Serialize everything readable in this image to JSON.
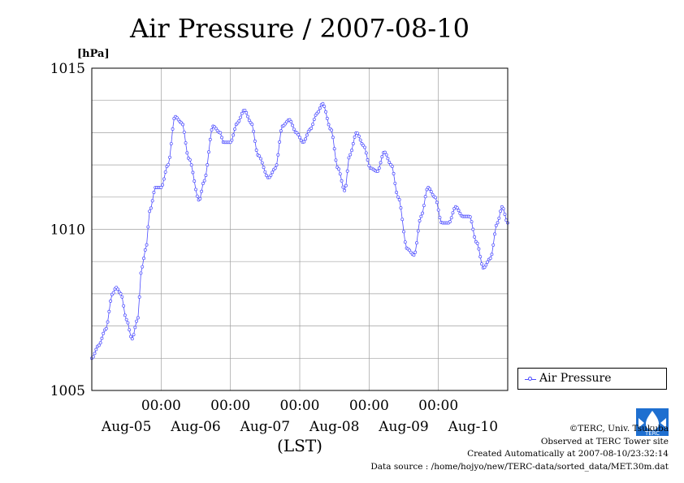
{
  "chart_data": {
    "type": "line",
    "title": "Air Pressure / 2007-08-10",
    "ylabel": "[hPa]",
    "xlabel": "(LST)",
    "ylim": [
      1005,
      1015
    ],
    "yticks": [
      "1005",
      "1010",
      "1015"
    ],
    "x_time_ticks": [
      "00:00",
      "00:00",
      "00:00",
      "00:00",
      "00:00"
    ],
    "x_date_labels": [
      "Aug-05",
      "Aug-06",
      "Aug-07",
      "Aug-08",
      "Aug-09",
      "Aug-10"
    ],
    "x_range_days": [
      0,
      6
    ],
    "grid": true,
    "legend_position": "right",
    "series": [
      {
        "name": "Air Pressure",
        "color": "#4b4bff",
        "interval_hours": 0.5,
        "keypoints": [
          {
            "t": 0.0,
            "y": 1006.0
          },
          {
            "t": 0.1,
            "y": 1006.4
          },
          {
            "t": 0.2,
            "y": 1006.9
          },
          {
            "t": 0.3,
            "y": 1008.0
          },
          {
            "t": 0.35,
            "y": 1008.2
          },
          {
            "t": 0.42,
            "y": 1008.0
          },
          {
            "t": 0.5,
            "y": 1007.2
          },
          {
            "t": 0.58,
            "y": 1006.6
          },
          {
            "t": 0.66,
            "y": 1007.2
          },
          {
            "t": 0.72,
            "y": 1008.8
          },
          {
            "t": 0.78,
            "y": 1009.4
          },
          {
            "t": 0.84,
            "y": 1010.6
          },
          {
            "t": 0.92,
            "y": 1011.3
          },
          {
            "t": 1.0,
            "y": 1011.3
          },
          {
            "t": 1.1,
            "y": 1012.0
          },
          {
            "t": 1.2,
            "y": 1013.5
          },
          {
            "t": 1.3,
            "y": 1013.3
          },
          {
            "t": 1.4,
            "y": 1012.2
          },
          {
            "t": 1.55,
            "y": 1010.9
          },
          {
            "t": 1.62,
            "y": 1011.5
          },
          {
            "t": 1.75,
            "y": 1013.2
          },
          {
            "t": 1.85,
            "y": 1013.0
          },
          {
            "t": 1.9,
            "y": 1012.7
          },
          {
            "t": 2.0,
            "y": 1012.7
          },
          {
            "t": 2.1,
            "y": 1013.3
          },
          {
            "t": 2.2,
            "y": 1013.7
          },
          {
            "t": 2.3,
            "y": 1013.3
          },
          {
            "t": 2.4,
            "y": 1012.3
          },
          {
            "t": 2.55,
            "y": 1011.6
          },
          {
            "t": 2.65,
            "y": 1011.9
          },
          {
            "t": 2.75,
            "y": 1013.2
          },
          {
            "t": 2.85,
            "y": 1013.4
          },
          {
            "t": 2.95,
            "y": 1013.0
          },
          {
            "t": 3.05,
            "y": 1012.7
          },
          {
            "t": 3.15,
            "y": 1013.1
          },
          {
            "t": 3.25,
            "y": 1013.6
          },
          {
            "t": 3.33,
            "y": 1013.9
          },
          {
            "t": 3.45,
            "y": 1013.1
          },
          {
            "t": 3.55,
            "y": 1011.9
          },
          {
            "t": 3.65,
            "y": 1011.2
          },
          {
            "t": 3.72,
            "y": 1012.3
          },
          {
            "t": 3.82,
            "y": 1013.0
          },
          {
            "t": 3.92,
            "y": 1012.6
          },
          {
            "t": 4.02,
            "y": 1011.9
          },
          {
            "t": 4.12,
            "y": 1011.8
          },
          {
            "t": 4.22,
            "y": 1012.4
          },
          {
            "t": 4.32,
            "y": 1012.0
          },
          {
            "t": 4.42,
            "y": 1011.0
          },
          {
            "t": 4.55,
            "y": 1009.4
          },
          {
            "t": 4.65,
            "y": 1009.2
          },
          {
            "t": 4.75,
            "y": 1010.4
          },
          {
            "t": 4.85,
            "y": 1011.3
          },
          {
            "t": 4.95,
            "y": 1011.0
          },
          {
            "t": 5.05,
            "y": 1010.2
          },
          {
            "t": 5.15,
            "y": 1010.2
          },
          {
            "t": 5.25,
            "y": 1010.7
          },
          {
            "t": 5.35,
            "y": 1010.4
          },
          {
            "t": 5.45,
            "y": 1010.4
          },
          {
            "t": 5.55,
            "y": 1009.6
          },
          {
            "t": 5.65,
            "y": 1008.8
          },
          {
            "t": 5.75,
            "y": 1009.1
          },
          {
            "t": 5.85,
            "y": 1010.2
          },
          {
            "t": 5.92,
            "y": 1010.7
          },
          {
            "t": 6.0,
            "y": 1010.2
          }
        ]
      }
    ]
  },
  "credits": {
    "copyright": "©TERC, Univ. Tsukuba",
    "site": "Observed at TERC Tower site",
    "created": "Created Automatically at 2007-08-10/23:32:14",
    "source": "Data source : /home/hojyo/new/TERC-data/sorted_data/MET.30m.dat",
    "logo_text": "TERC"
  }
}
